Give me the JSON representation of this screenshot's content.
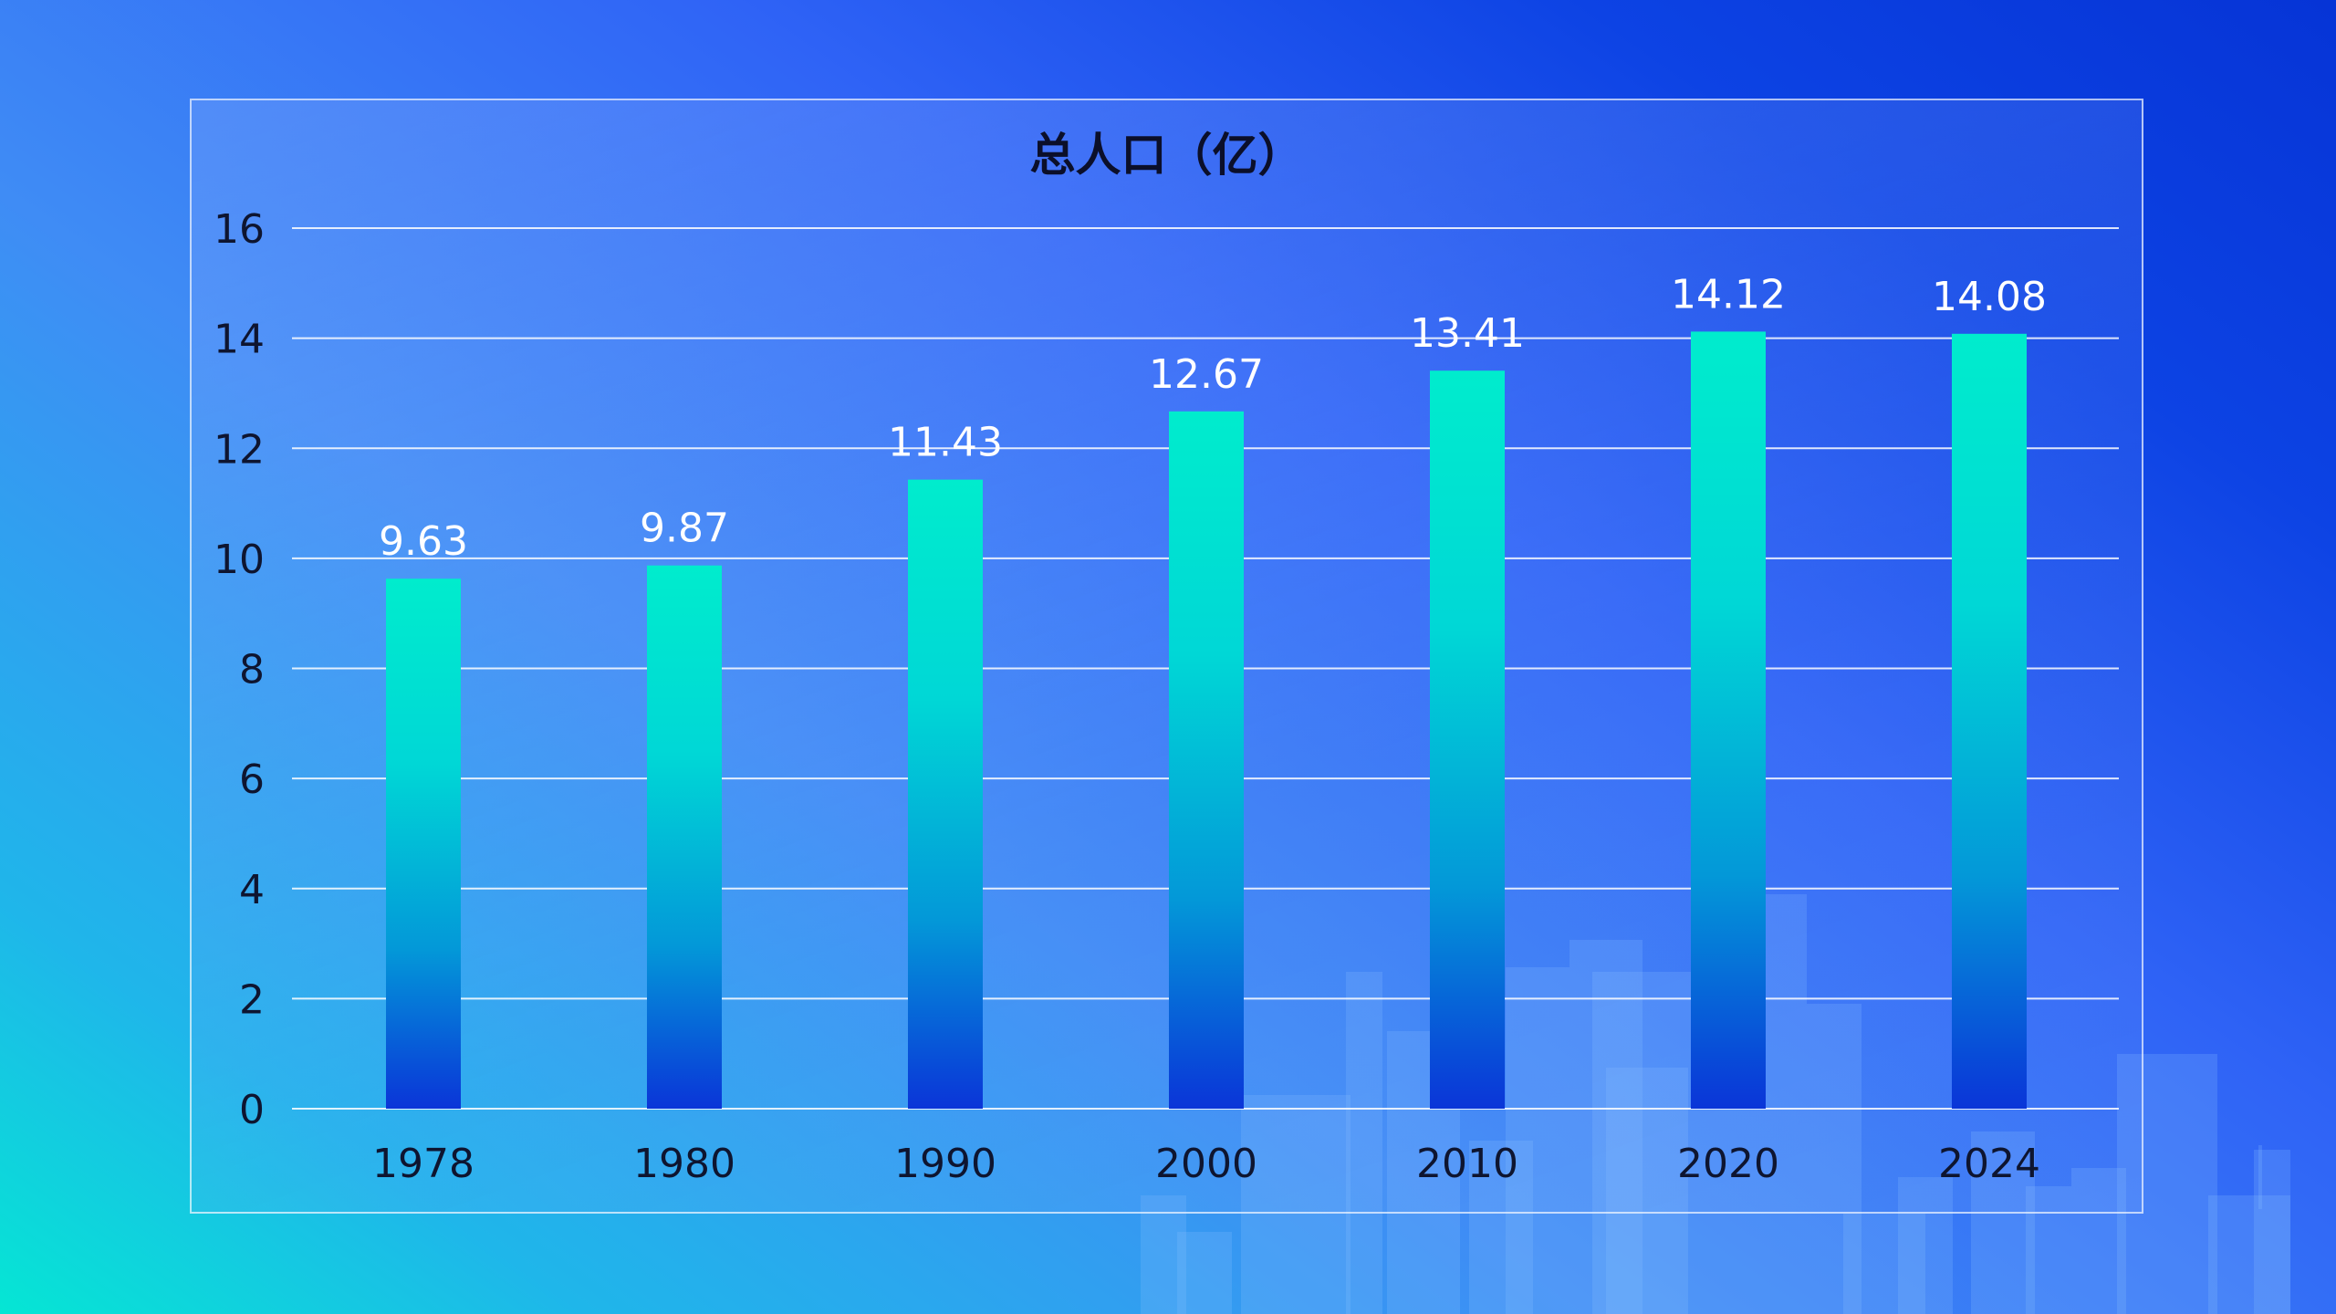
{
  "chart_data": {
    "type": "bar",
    "title": "总人口（亿）",
    "xlabel": "",
    "ylabel": "",
    "categories": [
      "1978",
      "1980",
      "1990",
      "2000",
      "2010",
      "2020",
      "2024"
    ],
    "values": [
      9.63,
      9.87,
      11.43,
      12.67,
      13.41,
      14.12,
      14.08
    ],
    "value_labels": [
      "9.63",
      "9.87",
      "11.43",
      "12.67",
      "13.41",
      "14.12",
      "14.08"
    ],
    "ylim": [
      0,
      16
    ],
    "yticks": [
      0,
      2,
      4,
      6,
      8,
      10,
      12,
      14,
      16
    ],
    "grid": true,
    "legend": "none",
    "bar_gradient": {
      "top": "#00eccd",
      "bottom": "#0a35d8"
    },
    "label_color": "#ffffff"
  }
}
